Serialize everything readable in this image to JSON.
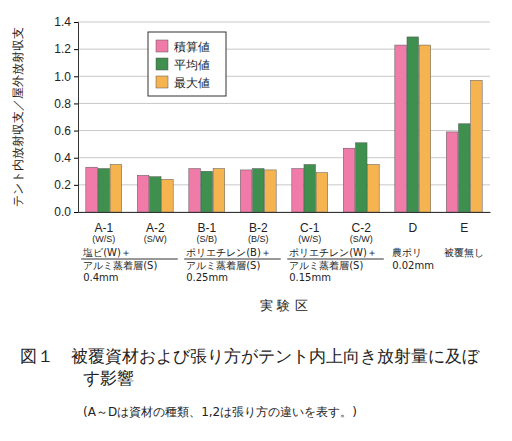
{
  "chart_data": {
    "type": "bar",
    "title": "図１　被覆資材および張り方がテント内上向き放射量に及ぼす影響",
    "subtitle": "(A～Dは資材の種類、1,2は張り方の違いを表す。)",
    "x_label": "実 験 区",
    "y_label": "テント内放射収支／屋外放射収支",
    "categories": [
      "A-1\n(W/S)",
      "A-2\n(S/W)",
      "B-1\n(S/B)",
      "B-2\n(B/S)",
      "C-1\n(W/S)",
      "C-2\n(S/W)",
      "D",
      "E"
    ],
    "series": [
      {
        "name": "積算値",
        "color": "#f07aa8",
        "values": [
          0.33,
          0.27,
          0.32,
          0.31,
          0.32,
          0.47,
          1.23,
          0.59
        ]
      },
      {
        "name": "平均値",
        "color": "#3f8f4e",
        "values": [
          0.32,
          0.26,
          0.3,
          0.32,
          0.35,
          0.51,
          1.29,
          0.65
        ]
      },
      {
        "name": "最大値",
        "color": "#f6b450",
        "values": [
          0.35,
          0.24,
          0.32,
          0.31,
          0.29,
          0.35,
          1.23,
          0.97
        ]
      }
    ],
    "annotations": [
      {
        "text": "塩ビ(W)＋\nアルミ蒸着層(S)\n0.4mm",
        "categories": [
          "A-1\n(W/S)",
          "A-2\n(S/W)"
        ]
      },
      {
        "text": "ポリエチレン(B)＋\nアルミ蒸着層(S)\n0.25mm",
        "categories": [
          "B-1\n(S/B)",
          "B-2\n(B/S)"
        ]
      },
      {
        "text": "ポリエチレン(W)＋\nアルミ蒸着層(S)\n0.15mm",
        "categories": [
          "C-1\n(W/S)",
          "C-2\n(S/W)"
        ]
      },
      {
        "text": "農ポリ\n0.02mm",
        "categories": [
          "D"
        ]
      },
      {
        "text": "被覆無し",
        "categories": [
          "E"
        ]
      }
    ],
    "ylim": [
      0,
      1.4
    ],
    "yticks": [
      {
        "value": 0,
        "label": "0.0"
      },
      0.2,
      0.4,
      0.6,
      0.8,
      {
        "value": 1,
        "label": "1.0"
      },
      1.2,
      1.4
    ],
    "grid": true,
    "legend": "top-left"
  }
}
